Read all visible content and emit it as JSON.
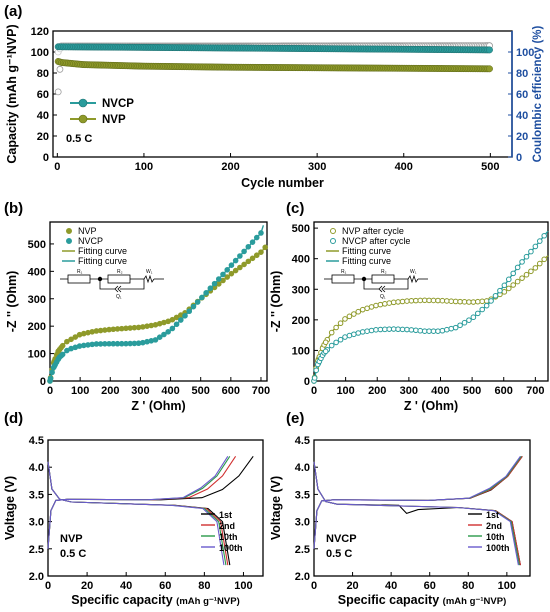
{
  "chart_data": [
    {
      "panel": "(a)",
      "type": "scatter",
      "xlabel": "Cycle number",
      "ylabel": "Capacity (mAh g⁻¹NVP)",
      "y2label": "Coulombic efficiency (%)",
      "xlim": [
        -5,
        525
      ],
      "ylim": [
        0,
        120
      ],
      "y2lim": [
        0,
        120
      ],
      "xticks": [
        0,
        100,
        200,
        300,
        400,
        500
      ],
      "yticks": [
        0,
        20,
        40,
        60,
        80,
        100,
        120
      ],
      "y2ticks": [
        0,
        20,
        40,
        60,
        80,
        100
      ],
      "annotation": "0.5 C",
      "legend": "center-left",
      "series": [
        {
          "name": "NVCP",
          "color": "#2a9c9c",
          "x": [
            1,
            500
          ],
          "y": [
            105,
            102
          ]
        },
        {
          "name": "NVP",
          "color": "#8f9a2a",
          "x": [
            1,
            5,
            30,
            100,
            200,
            300,
            400,
            500
          ],
          "y": [
            91,
            90,
            88,
            86.5,
            85.5,
            85,
            84.5,
            84
          ]
        },
        {
          "name": "CE (NVCP)",
          "color": "#9a9a9a",
          "axis": "right",
          "x": [
            1,
            5,
            500
          ],
          "y": [
            62,
            105,
            106
          ]
        },
        {
          "name": "CE (NVP)",
          "color": "#c8c8c8",
          "axis": "right",
          "x": [
            1,
            5,
            500
          ],
          "y": [
            100,
            106,
            106
          ]
        }
      ]
    },
    {
      "panel": "(b)",
      "type": "scatter",
      "xlabel": "Z ' (Ohm)",
      "ylabel": "-Z '' (Ohm)",
      "xlim": [
        0,
        720
      ],
      "ylim": [
        0,
        580
      ],
      "xticks": [
        0,
        100,
        200,
        300,
        400,
        500,
        600,
        700
      ],
      "yticks": [
        0,
        100,
        200,
        300,
        400,
        500
      ],
      "legend": "top-left",
      "series": [
        {
          "name": "NVP",
          "color": "#8f9a2a",
          "points": [
            [
              0,
              0
            ],
            [
              10,
              60
            ],
            [
              25,
              105
            ],
            [
              50,
              140
            ],
            [
              100,
              170
            ],
            [
              150,
              182
            ],
            [
              200,
              188
            ],
            [
              250,
              192
            ],
            [
              300,
              196
            ],
            [
              350,
              205
            ],
            [
              400,
              220
            ],
            [
              450,
              250
            ],
            [
              500,
              300
            ],
            [
              550,
              345
            ],
            [
              600,
              390
            ],
            [
              650,
              430
            ],
            [
              700,
              470
            ],
            [
              720,
              495
            ]
          ]
        },
        {
          "name": "NVCP",
          "color": "#2a9c9c",
          "points": [
            [
              0,
              0
            ],
            [
              10,
              45
            ],
            [
              30,
              85
            ],
            [
              60,
              115
            ],
            [
              100,
              128
            ],
            [
              150,
              135
            ],
            [
              200,
              136
            ],
            [
              250,
              136
            ],
            [
              300,
              138
            ],
            [
              350,
              150
            ],
            [
              400,
              185
            ],
            [
              450,
              240
            ],
            [
              500,
              300
            ],
            [
              550,
              360
            ],
            [
              600,
              420
            ],
            [
              650,
              480
            ],
            [
              700,
              540
            ],
            [
              710,
              575
            ]
          ]
        }
      ],
      "fit_labels": [
        "Fitting curve",
        "Fitting curve"
      ],
      "circuit_labels": [
        "R₁",
        "R₂",
        "Q₁",
        "W₁"
      ]
    },
    {
      "panel": "(c)",
      "type": "scatter",
      "xlabel": "Z ' (Ohm)",
      "ylabel": "-Z '' (Ohm)",
      "xlim": [
        0,
        740
      ],
      "ylim": [
        0,
        520
      ],
      "xticks": [
        0,
        100,
        200,
        300,
        400,
        500,
        600,
        700
      ],
      "yticks": [
        0,
        100,
        200,
        300,
        400,
        500
      ],
      "legend": "top-left",
      "series": [
        {
          "name": "NVP after cycle",
          "color": "#8f9a2a",
          "points": [
            [
              0,
              0
            ],
            [
              10,
              60
            ],
            [
              30,
              115
            ],
            [
              60,
              165
            ],
            [
              100,
              205
            ],
            [
              150,
              232
            ],
            [
              200,
              248
            ],
            [
              250,
              257
            ],
            [
              300,
              262
            ],
            [
              350,
              264
            ],
            [
              400,
              263
            ],
            [
              450,
              260
            ],
            [
              500,
              258
            ],
            [
              550,
              262
            ],
            [
              600,
              290
            ],
            [
              650,
              330
            ],
            [
              700,
              370
            ],
            [
              740,
              410
            ]
          ]
        },
        {
          "name": "NVCP after cycle",
          "color": "#2a9c9c",
          "points": [
            [
              0,
              0
            ],
            [
              10,
              50
            ],
            [
              30,
              90
            ],
            [
              60,
              120
            ],
            [
              100,
              145
            ],
            [
              150,
              160
            ],
            [
              200,
              168
            ],
            [
              250,
              170
            ],
            [
              300,
              168
            ],
            [
              350,
              163
            ],
            [
              400,
              163
            ],
            [
              450,
              175
            ],
            [
              500,
              205
            ],
            [
              550,
              250
            ],
            [
              600,
              310
            ],
            [
              650,
              380
            ],
            [
              700,
              440
            ],
            [
              740,
              490
            ]
          ]
        }
      ],
      "fit_labels": [
        "Fitting curve",
        "Fitting curve"
      ],
      "circuit_labels": [
        "R₁",
        "R₂",
        "Q₁",
        "W₁"
      ]
    },
    {
      "panel": "(d)",
      "type": "line",
      "xlabel": "Specific capacity",
      "xunit": "(mAh g⁻¹NVP)",
      "ylabel": "Voltage (V)",
      "xlim": [
        0,
        110
      ],
      "ylim": [
        2.0,
        4.5
      ],
      "xticks": [
        0,
        20,
        40,
        60,
        80,
        100
      ],
      "yticks": [
        2.0,
        2.5,
        3.0,
        3.5,
        4.0,
        4.5
      ],
      "annotation": [
        "NVP",
        "0.5 C"
      ],
      "legend": "lower-right",
      "series": [
        {
          "name": "1st",
          "color": "#000000",
          "cap_charge": 105,
          "cap_discharge": 93
        },
        {
          "name": "2nd",
          "color": "#d03030",
          "cap_charge": 96,
          "cap_discharge": 92
        },
        {
          "name": "10th",
          "color": "#2a9a4a",
          "cap_charge": 93,
          "cap_discharge": 91
        },
        {
          "name": "100th",
          "color": "#6a5acd",
          "cap_charge": 92,
          "cap_discharge": 90
        }
      ]
    },
    {
      "panel": "(e)",
      "type": "line",
      "xlabel": "Specific capacity",
      "xunit": "(mAh g⁻¹NVP)",
      "ylabel": "Voltage (V)",
      "xlim": [
        0,
        112
      ],
      "ylim": [
        2.0,
        4.5
      ],
      "xticks": [
        0,
        20,
        40,
        60,
        80,
        100
      ],
      "yticks": [
        2.0,
        2.5,
        3.0,
        3.5,
        4.0,
        4.5
      ],
      "annotation": [
        "NVCP",
        "0.5 C"
      ],
      "legend": "lower-right",
      "series": [
        {
          "name": "1st",
          "color": "#000000",
          "cap_charge": 108,
          "cap_discharge": 107
        },
        {
          "name": "2nd",
          "color": "#d03030",
          "cap_charge": 108,
          "cap_discharge": 107
        },
        {
          "name": "10th",
          "color": "#2a9a4a",
          "cap_charge": 107.5,
          "cap_discharge": 106.5
        },
        {
          "name": "100th",
          "color": "#6a5acd",
          "cap_charge": 107,
          "cap_discharge": 106
        }
      ]
    }
  ]
}
